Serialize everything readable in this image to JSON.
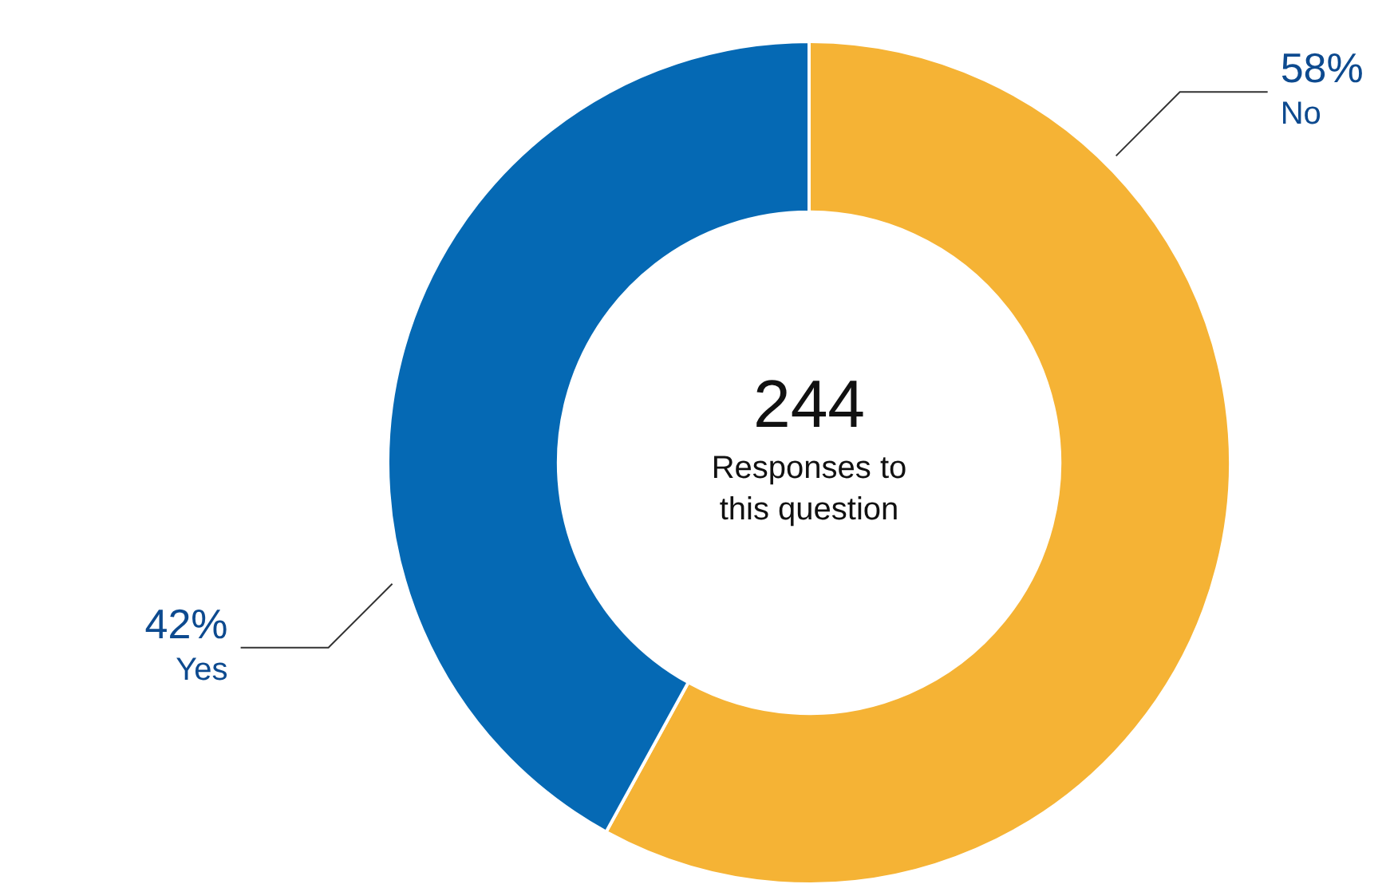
{
  "chart_data": {
    "type": "donut",
    "categories": [
      "No",
      "Yes"
    ],
    "values": [
      58,
      42
    ],
    "colors": [
      "#f5b335",
      "#0569b4"
    ],
    "data_labels": true,
    "value_labels": [
      "58%",
      "42%"
    ],
    "legend": false,
    "annotations": [
      "244",
      "Responses to this question"
    ]
  }
}
